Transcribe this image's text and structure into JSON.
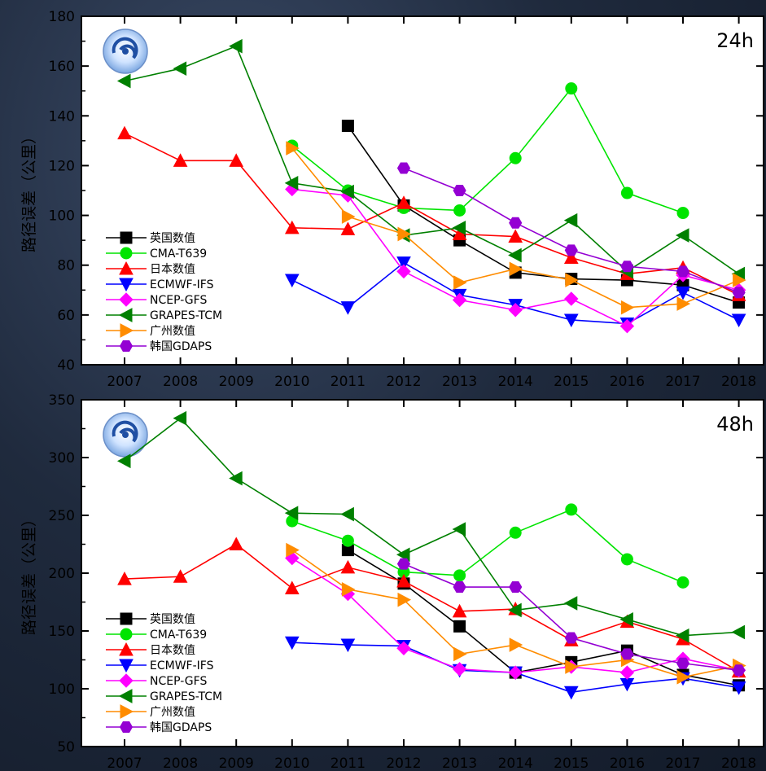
{
  "chart_data": [
    {
      "type": "line",
      "panel_label": "24h",
      "ylabel": "路径误差（公里）",
      "ylim": [
        40,
        180
      ],
      "yticks": [
        40,
        60,
        80,
        100,
        120,
        140,
        160,
        180
      ],
      "x": [
        "2007",
        "2008",
        "2009",
        "2010",
        "2011",
        "2012",
        "2013",
        "2014",
        "2015",
        "2016",
        "2017",
        "2018"
      ],
      "legend_position": "bottom-left",
      "series": [
        {
          "name": "英国数值",
          "color": "#000000",
          "marker": "square",
          "values": [
            null,
            null,
            null,
            null,
            136,
            104,
            90,
            77,
            74.5,
            74,
            72,
            65
          ]
        },
        {
          "name": "CMA-T639",
          "color": "#00e400",
          "marker": "circle",
          "values": [
            null,
            null,
            null,
            128,
            110,
            103,
            102,
            123,
            151,
            109,
            101,
            null
          ]
        },
        {
          "name": "日本数值",
          "color": "#ff0000",
          "marker": "triangle-up",
          "values": [
            133,
            122,
            122,
            95,
            94.5,
            105,
            92.5,
            91.5,
            83,
            76.5,
            79,
            68
          ]
        },
        {
          "name": "ECMWF-IFS",
          "color": "#0000ff",
          "marker": "triangle-down",
          "values": [
            null,
            null,
            null,
            74,
            63,
            81,
            68,
            64,
            58,
            56.5,
            69,
            58
          ]
        },
        {
          "name": "NCEP-GFS",
          "color": "#ff00ff",
          "marker": "diamond",
          "values": [
            null,
            null,
            null,
            110.5,
            108,
            77.5,
            66,
            62,
            66.5,
            55.5,
            76,
            70
          ]
        },
        {
          "name": "GRAPES-TCM",
          "color": "#008000",
          "marker": "triangle-left",
          "values": [
            154,
            159,
            168,
            113,
            109.5,
            92,
            95,
            84,
            98,
            77.5,
            92,
            76.5
          ]
        },
        {
          "name": "广州数值",
          "color": "#ff8c00",
          "marker": "triangle-right",
          "values": [
            null,
            null,
            null,
            127,
            99.5,
            92.5,
            73,
            78.5,
            74,
            63,
            64.5,
            74
          ]
        },
        {
          "name": "韩国GDAPS",
          "color": "#9400d3",
          "marker": "hexagon",
          "values": [
            null,
            null,
            null,
            null,
            null,
            119,
            110,
            97,
            86,
            79.5,
            77.5,
            69
          ]
        }
      ]
    },
    {
      "type": "line",
      "panel_label": "48h",
      "ylabel": "路径误差（公里）",
      "ylim": [
        50,
        350
      ],
      "yticks": [
        50,
        100,
        150,
        200,
        250,
        300,
        350
      ],
      "x": [
        "2007",
        "2008",
        "2009",
        "2010",
        "2011",
        "2012",
        "2013",
        "2014",
        "2015",
        "2016",
        "2017",
        "2018"
      ],
      "legend_position": "bottom-left",
      "series": [
        {
          "name": "英国数值",
          "color": "#000000",
          "marker": "square",
          "values": [
            null,
            null,
            null,
            null,
            220,
            191,
            154,
            114,
            123,
            133,
            112,
            103
          ]
        },
        {
          "name": "CMA-T639",
          "color": "#00e400",
          "marker": "circle",
          "values": [
            null,
            null,
            null,
            245,
            228,
            201,
            198,
            235,
            255,
            212,
            192,
            null
          ]
        },
        {
          "name": "日本数值",
          "color": "#ff0000",
          "marker": "triangle-up",
          "values": [
            195,
            197,
            225,
            187,
            205,
            193,
            167,
            169,
            142,
            158,
            143,
            115
          ]
        },
        {
          "name": "ECMWF-IFS",
          "color": "#0000ff",
          "marker": "triangle-down",
          "values": [
            null,
            null,
            null,
            140,
            138,
            137,
            116,
            114,
            97,
            104,
            109,
            101
          ]
        },
        {
          "name": "NCEP-GFS",
          "color": "#ff00ff",
          "marker": "diamond",
          "values": [
            null,
            null,
            null,
            213,
            182,
            135,
            117,
            114,
            119,
            114,
            126,
            116
          ]
        },
        {
          "name": "GRAPES-TCM",
          "color": "#008000",
          "marker": "triangle-left",
          "values": [
            297,
            334,
            282,
            252,
            251,
            216,
            238,
            168,
            174,
            160,
            146,
            149
          ]
        },
        {
          "name": "广州数值",
          "color": "#ff8c00",
          "marker": "triangle-right",
          "values": [
            null,
            null,
            null,
            220,
            186,
            177,
            130,
            138,
            119,
            125,
            110,
            120
          ]
        },
        {
          "name": "韩国GDAPS",
          "color": "#9400d3",
          "marker": "hexagon",
          "values": [
            null,
            null,
            null,
            null,
            null,
            208,
            188,
            188,
            144,
            130,
            122,
            116
          ]
        }
      ]
    }
  ]
}
